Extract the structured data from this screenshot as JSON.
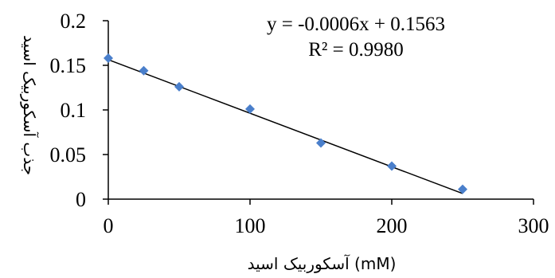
{
  "chart_data": {
    "type": "scatter",
    "xlabel": "آسکوربیک اسید (mM)",
    "ylabel": "جذب آسکوربیک اسید",
    "xlim": [
      0,
      300
    ],
    "ylim": [
      0,
      0.2
    ],
    "x_ticks": [
      "0",
      "100",
      "200",
      "300"
    ],
    "y_ticks": [
      "0",
      "0.05",
      "0.1",
      "0.15",
      "0.2"
    ],
    "grid": false,
    "series": [
      {
        "marker": "diamond",
        "color": "#4a7fcb",
        "points": [
          {
            "x": 0,
            "y": 0.158
          },
          {
            "x": 25,
            "y": 0.144
          },
          {
            "x": 50,
            "y": 0.126
          },
          {
            "x": 100,
            "y": 0.101
          },
          {
            "x": 150,
            "y": 0.063
          },
          {
            "x": 200,
            "y": 0.037
          },
          {
            "x": 250,
            "y": 0.011
          }
        ]
      }
    ],
    "trendline": {
      "type": "linear",
      "slope": -0.0006,
      "intercept": 0.1563,
      "x_range": [
        0,
        250
      ],
      "color": "#000000"
    },
    "annotations": [
      "y = -0.0006x + 0.1563",
      "R² = 0.9980"
    ]
  }
}
